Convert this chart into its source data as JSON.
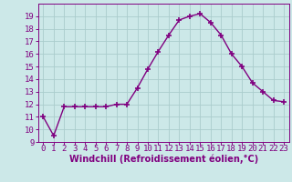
{
  "x": [
    0,
    1,
    2,
    3,
    4,
    5,
    6,
    7,
    8,
    9,
    10,
    11,
    12,
    13,
    14,
    15,
    16,
    17,
    18,
    19,
    20,
    21,
    22,
    23
  ],
  "y": [
    11.0,
    9.5,
    11.8,
    11.8,
    11.8,
    11.8,
    11.8,
    12.0,
    12.0,
    13.3,
    14.8,
    16.2,
    17.5,
    18.7,
    19.0,
    19.2,
    18.5,
    17.5,
    16.0,
    15.0,
    13.7,
    13.0,
    12.3,
    12.2
  ],
  "line_color": "#800080",
  "marker": "+",
  "marker_size": 5,
  "marker_lw": 1.2,
  "bg_color": "#cce8e8",
  "grid_color": "#aacccc",
  "xlabel": "Windchill (Refroidissement éolien,°C)",
  "tick_color": "#800080",
  "ylim": [
    9,
    20
  ],
  "xlim": [
    -0.5,
    23.5
  ],
  "yticks": [
    9,
    10,
    11,
    12,
    13,
    14,
    15,
    16,
    17,
    18,
    19
  ],
  "xticks": [
    0,
    1,
    2,
    3,
    4,
    5,
    6,
    7,
    8,
    9,
    10,
    11,
    12,
    13,
    14,
    15,
    16,
    17,
    18,
    19,
    20,
    21,
    22,
    23
  ],
  "font_size": 6.5,
  "xlabel_fontsize": 7,
  "line_width": 1.0
}
